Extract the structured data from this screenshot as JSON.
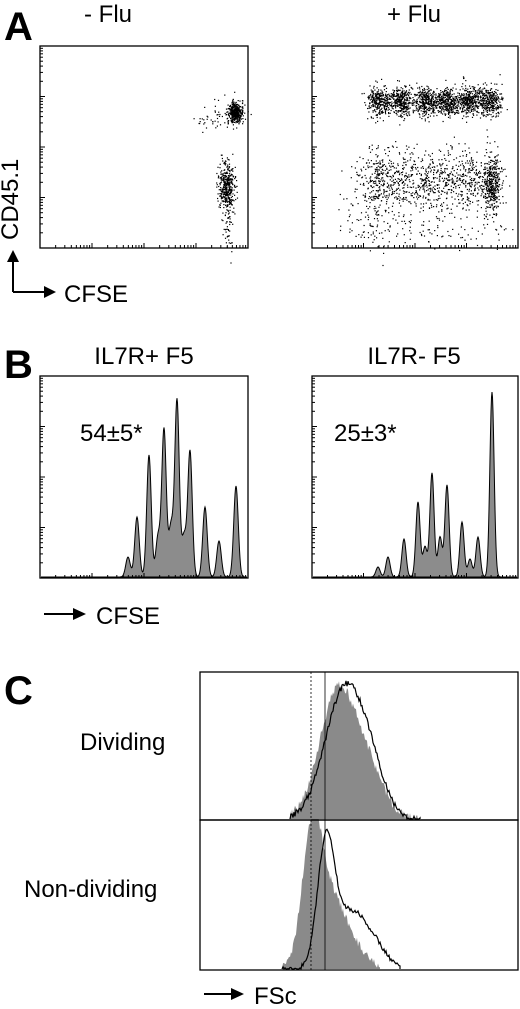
{
  "panel_a": {
    "letter": "A",
    "left_title": "- Flu",
    "right_title": "+ Flu",
    "y_axis_label": "CD45.1",
    "x_axis_label": "CFSE"
  },
  "panel_b": {
    "letter": "B",
    "left_title": "IL7R+ F5",
    "right_title": "IL7R- F5",
    "left_value": "54±5*",
    "right_value": "25±3*",
    "x_axis_label": "CFSE"
  },
  "panel_c": {
    "letter": "C",
    "top_row_label": "Dividing",
    "bottom_row_label": "Non-dividing",
    "x_axis_label": "FSc"
  },
  "colors": {
    "histogram_fill": "#8c8c8c",
    "line": "#000000"
  }
}
